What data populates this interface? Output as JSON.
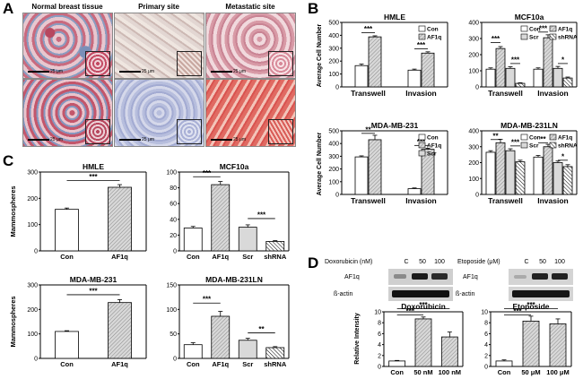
{
  "panel_letters": {
    "a": "A",
    "b": "B",
    "c": "C",
    "d": "D"
  },
  "panelA": {
    "titles": [
      "Normal breast tissue",
      "Primary site",
      "Metastatic site"
    ],
    "scale_label": "25 μm"
  },
  "colors": {
    "con": "#ffffff",
    "af1q": "#cfcfcf",
    "scr": "#d9d9d9",
    "shrna": "#ffffff",
    "sig": "#000000"
  },
  "panelB": {
    "ylabel": "Average Cell Number",
    "charts": [
      {
        "title": "HMLE",
        "ylim": [
          0,
          500
        ],
        "yticks": [
          0,
          100,
          200,
          300,
          400,
          500
        ],
        "groups": [
          "Transwell",
          "Invasion"
        ],
        "series": [
          {
            "name": "Con",
            "fill": "con",
            "values": [
              165,
              130
            ],
            "errors": [
              12,
              8
            ]
          },
          {
            "name": "AF1q",
            "fill": "af1q",
            "values": [
              388,
              262
            ],
            "errors": [
              8,
              10
            ]
          }
        ],
        "sig": [
          {
            "label": "***",
            "group": 0,
            "from": 0,
            "to": 1,
            "y": 420
          },
          {
            "label": "***",
            "group": 1,
            "from": 0,
            "to": 1,
            "y": 295
          }
        ],
        "legend_cols": 1
      },
      {
        "title": "MCF10a",
        "ylim": [
          0,
          400
        ],
        "yticks": [
          0,
          100,
          200,
          300,
          400
        ],
        "groups": [
          "Transwell",
          "Invasion"
        ],
        "series": [
          {
            "name": "Con",
            "fill": "con",
            "values": [
              110,
              110
            ],
            "errors": [
              8,
              8
            ]
          },
          {
            "name": "AF1q",
            "fill": "af1q",
            "values": [
              238,
              305
            ],
            "errors": [
              12,
              18
            ]
          },
          {
            "name": "Scr",
            "fill": "scr",
            "values": [
              115,
              115
            ],
            "errors": [
              10,
              12
            ]
          },
          {
            "name": "shRNA",
            "fill": "shrna",
            "values": [
              22,
              55
            ],
            "errors": [
              4,
              6
            ]
          }
        ],
        "sig": [
          {
            "label": "***",
            "group": 0,
            "from": 0,
            "to": 1,
            "y": 275
          },
          {
            "label": "***",
            "group": 0,
            "from": 2,
            "to": 3,
            "y": 145
          },
          {
            "label": "***",
            "group": 1,
            "from": 0,
            "to": 1,
            "y": 340
          },
          {
            "label": "*",
            "group": 1,
            "from": 2,
            "to": 3,
            "y": 145
          }
        ],
        "legend_cols": 2
      },
      {
        "title": "MDA-MB-231",
        "ylim": [
          0,
          500
        ],
        "yticks": [
          0,
          100,
          200,
          300,
          400,
          500
        ],
        "groups": [
          "Transwell",
          "Invasion"
        ],
        "series": [
          {
            "name": "Con",
            "fill": "con",
            "values": [
              295,
              45
            ],
            "errors": [
              8,
              6
            ]
          },
          {
            "name": "AF1q",
            "fill": "af1q",
            "values": [
              430,
              355
            ],
            "errors": [
              35,
              8
            ]
          },
          {
            "name": "Scr",
            "fill": "scr",
            "values": [],
            "errors": []
          }
        ],
        "sig": [
          {
            "label": "**",
            "group": 0,
            "from": 0,
            "to": 1,
            "y": 480
          },
          {
            "label": "***",
            "group": 1,
            "from": 0,
            "to": 1,
            "y": 385
          }
        ],
        "legend_cols": 1
      },
      {
        "title": "MDA-MB-231LN",
        "ylim": [
          0,
          400
        ],
        "yticks": [
          0,
          100,
          200,
          300,
          400
        ],
        "groups": [
          "Transwell",
          "Invasion"
        ],
        "series": [
          {
            "name": "Con",
            "fill": "con",
            "values": [
              265,
              235
            ],
            "errors": [
              10,
              10
            ]
          },
          {
            "name": "AF1q",
            "fill": "af1q",
            "values": [
              325,
              300
            ],
            "errors": [
              22,
              15
            ]
          },
          {
            "name": "Scr",
            "fill": "scr",
            "values": [
              275,
              200
            ],
            "errors": [
              12,
              10
            ]
          },
          {
            "name": "shRNA",
            "fill": "shrna",
            "values": [
              205,
              175
            ],
            "errors": [
              10,
              12
            ]
          }
        ],
        "sig": [
          {
            "label": "**",
            "group": 0,
            "from": 0,
            "to": 1,
            "y": 345
          },
          {
            "label": "***",
            "group": 0,
            "from": 2,
            "to": 3,
            "y": 305
          },
          {
            "label": "**",
            "group": 1,
            "from": 0,
            "to": 1,
            "y": 325
          },
          {
            "label": "*",
            "group": 1,
            "from": 2,
            "to": 3,
            "y": 215
          }
        ],
        "legend_cols": 2
      }
    ]
  },
  "panelC": {
    "ylabel": "Mammospheres",
    "charts": [
      {
        "title": "HMLE",
        "ylim": [
          0,
          300
        ],
        "yticks": [
          0,
          100,
          200,
          300
        ],
        "categories": [
          "Con",
          "AF1q"
        ],
        "values": [
          158,
          242
        ],
        "errors": [
          5,
          10
        ],
        "fills": [
          "con",
          "af1q"
        ],
        "sig": [
          {
            "label": "***",
            "from": 0,
            "to": 1,
            "y": 268
          }
        ]
      },
      {
        "title": "MCF10a",
        "ylim": [
          0,
          100
        ],
        "yticks": [
          0,
          20,
          40,
          60,
          80,
          100
        ],
        "categories": [
          "Con",
          "AF1q",
          "Scr",
          "shRNA"
        ],
        "values": [
          29,
          84,
          30,
          12
        ],
        "errors": [
          2,
          4,
          3,
          1
        ],
        "fills": [
          "con",
          "af1q",
          "scr",
          "shrna"
        ],
        "sig": [
          {
            "label": "***",
            "from": 0,
            "to": 1,
            "y": 94
          },
          {
            "label": "***",
            "from": 2,
            "to": 3,
            "y": 41
          }
        ]
      },
      {
        "title": "MDA-MB-231",
        "ylim": [
          0,
          300
        ],
        "yticks": [
          0,
          100,
          200,
          300
        ],
        "categories": [
          "Con",
          "AF1q"
        ],
        "values": [
          110,
          228
        ],
        "errors": [
          3,
          12
        ],
        "fills": [
          "con",
          "af1q"
        ],
        "sig": [
          {
            "label": "***",
            "from": 0,
            "to": 1,
            "y": 260
          }
        ]
      },
      {
        "title": "MDA-MB-231LN",
        "ylim": [
          0,
          150
        ],
        "yticks": [
          0,
          50,
          100,
          150
        ],
        "categories": [
          "Con",
          "AF1q",
          "Scr",
          "shRNA"
        ],
        "values": [
          28,
          86,
          37,
          22
        ],
        "errors": [
          4,
          10,
          4,
          2
        ],
        "fills": [
          "con",
          "af1q",
          "scr",
          "shrna"
        ],
        "sig": [
          {
            "label": "***",
            "from": 0,
            "to": 1,
            "y": 113
          },
          {
            "label": "**",
            "from": 2,
            "to": 3,
            "y": 52
          }
        ]
      }
    ]
  },
  "panelD": {
    "doxo_header": "Doxorubicin  (nM)",
    "doxo_lanes": [
      "C",
      "50",
      "100"
    ],
    "etop_header": "Etoposide  (μM)",
    "etop_lanes": [
      "C",
      "50",
      "100"
    ],
    "blot_labels": [
      "AF1q",
      "ß-actin"
    ],
    "ylabel": "Relative Intensity",
    "charts": [
      {
        "title": "Doxorubicin",
        "ylim": [
          0,
          10
        ],
        "yticks": [
          0,
          2,
          4,
          6,
          8,
          10
        ],
        "categories": [
          "Con",
          "50 nM",
          "100 nM"
        ],
        "values": [
          1.0,
          8.7,
          5.4
        ],
        "errors": [
          0.1,
          0.35,
          0.9
        ],
        "fills": [
          "con",
          "af1q",
          "af1q"
        ],
        "sig": [
          {
            "label": "***",
            "from": 0,
            "to": 1,
            "y": 9.4
          },
          {
            "label": "***",
            "from": 0,
            "to": 2,
            "y": 10.6
          }
        ]
      },
      {
        "title": "Etoposide",
        "ylim": [
          0,
          10
        ],
        "yticks": [
          0,
          2,
          4,
          6,
          8,
          10
        ],
        "categories": [
          "Con",
          "50 μM",
          "100 μM"
        ],
        "values": [
          1.0,
          8.3,
          7.8
        ],
        "errors": [
          0.2,
          0.9,
          0.9
        ],
        "fills": [
          "con",
          "af1q",
          "af1q"
        ],
        "sig": [
          {
            "label": "***",
            "from": 0,
            "to": 1,
            "y": 9.4
          },
          {
            "label": "***",
            "from": 0,
            "to": 2,
            "y": 10.6
          }
        ]
      }
    ]
  },
  "chart_data": [
    {
      "type": "bar",
      "title": "HMLE",
      "categories": [
        "Transwell",
        "Invasion"
      ],
      "series": [
        {
          "name": "Con",
          "values": [
            165,
            130
          ]
        },
        {
          "name": "AF1q",
          "values": [
            388,
            262
          ]
        }
      ],
      "ylabel": "Average Cell Number",
      "ylim": [
        0,
        500
      ]
    },
    {
      "type": "bar",
      "title": "MCF10a",
      "categories": [
        "Transwell",
        "Invasion"
      ],
      "series": [
        {
          "name": "Con",
          "values": [
            110,
            110
          ]
        },
        {
          "name": "AF1q",
          "values": [
            238,
            305
          ]
        },
        {
          "name": "Scr",
          "values": [
            115,
            115
          ]
        },
        {
          "name": "shRNA",
          "values": [
            22,
            55
          ]
        }
      ],
      "ylabel": "Average Cell Number",
      "ylim": [
        0,
        400
      ]
    },
    {
      "type": "bar",
      "title": "MDA-MB-231",
      "categories": [
        "Transwell",
        "Invasion"
      ],
      "series": [
        {
          "name": "Con",
          "values": [
            295,
            45
          ]
        },
        {
          "name": "AF1q",
          "values": [
            430,
            355
          ]
        }
      ],
      "ylabel": "Average Cell Number",
      "ylim": [
        0,
        500
      ]
    },
    {
      "type": "bar",
      "title": "MDA-MB-231LN",
      "categories": [
        "Transwell",
        "Invasion"
      ],
      "series": [
        {
          "name": "Con",
          "values": [
            265,
            235
          ]
        },
        {
          "name": "AF1q",
          "values": [
            325,
            300
          ]
        },
        {
          "name": "Scr",
          "values": [
            275,
            200
          ]
        },
        {
          "name": "shRNA",
          "values": [
            205,
            175
          ]
        }
      ],
      "ylabel": "Average Cell Number",
      "ylim": [
        0,
        400
      ]
    },
    {
      "type": "bar",
      "title": "HMLE",
      "categories": [
        "Con",
        "AF1q"
      ],
      "values": [
        158,
        242
      ],
      "ylabel": "Mammospheres",
      "ylim": [
        0,
        300
      ]
    },
    {
      "type": "bar",
      "title": "MCF10a",
      "categories": [
        "Con",
        "AF1q",
        "Scr",
        "shRNA"
      ],
      "values": [
        29,
        84,
        30,
        12
      ],
      "ylim": [
        0,
        100
      ]
    },
    {
      "type": "bar",
      "title": "MDA-MB-231",
      "categories": [
        "Con",
        "AF1q"
      ],
      "values": [
        110,
        228
      ],
      "ylabel": "Mammospheres",
      "ylim": [
        0,
        300
      ]
    },
    {
      "type": "bar",
      "title": "MDA-MB-231LN",
      "categories": [
        "Con",
        "AF1q",
        "Scr",
        "shRNA"
      ],
      "values": [
        28,
        86,
        37,
        22
      ],
      "ylim": [
        0,
        150
      ]
    },
    {
      "type": "bar",
      "title": "Doxorubicin",
      "categories": [
        "Con",
        "50 nM",
        "100 nM"
      ],
      "values": [
        1.0,
        8.7,
        5.4
      ],
      "ylabel": "Relative Intensity",
      "ylim": [
        0,
        10
      ]
    },
    {
      "type": "bar",
      "title": "Etoposide",
      "categories": [
        "Con",
        "50 μM",
        "100 μM"
      ],
      "values": [
        1.0,
        8.3,
        7.8
      ],
      "ylim": [
        0,
        10
      ]
    }
  ]
}
